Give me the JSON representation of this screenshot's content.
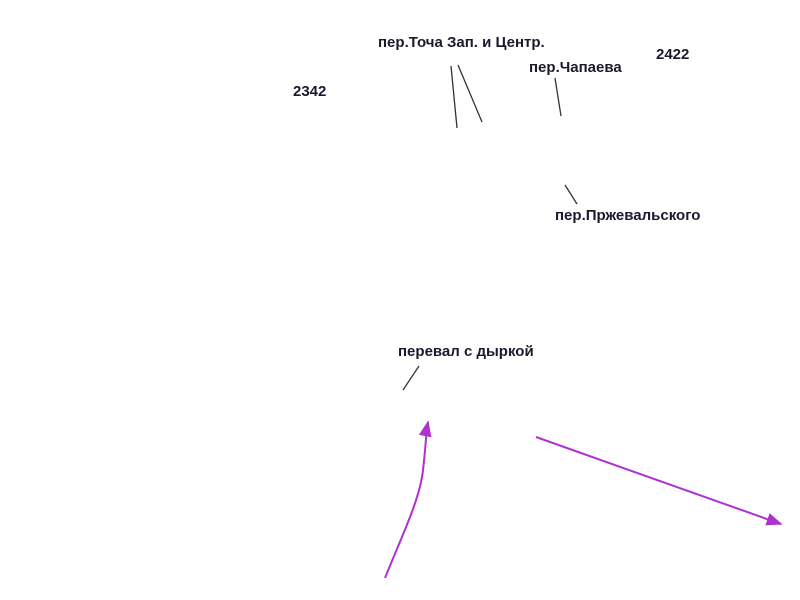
{
  "labels": [
    {
      "name": "пер.Точа Зап. и Центр."
    },
    {
      "name": "пер.Чапаева"
    },
    {
      "name": "2422"
    },
    {
      "name": "2342"
    },
    {
      "name": "пер.Пржевальского"
    },
    {
      "name": "перевал с дыркой"
    }
  ]
}
